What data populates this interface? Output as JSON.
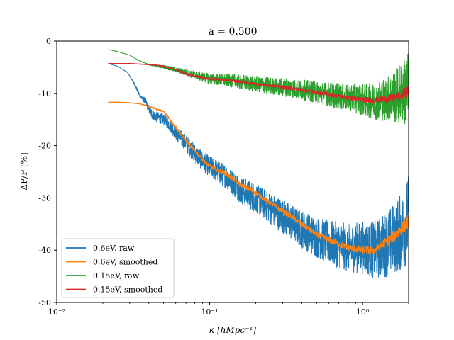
{
  "chart_data": {
    "type": "line",
    "title": "a = 0.500",
    "xlabel": "k [hMpc⁻¹]",
    "ylabel": "ΔP/P [%]",
    "xscale": "log",
    "xlim": [
      0.01,
      2.0
    ],
    "ylim": [
      -50,
      0
    ],
    "grid": false,
    "legend_position": "lower-left",
    "x_ticks": [
      {
        "value": 0.01,
        "label": "10⁻²"
      },
      {
        "value": 0.1,
        "label": "10⁻¹"
      },
      {
        "value": 1,
        "label": "10⁰"
      }
    ],
    "y_ticks": [
      {
        "value": 0,
        "label": "0"
      },
      {
        "value": -10,
        "label": "-10"
      },
      {
        "value": -20,
        "label": "-20"
      },
      {
        "value": -30,
        "label": "-30"
      },
      {
        "value": -40,
        "label": "-40"
      },
      {
        "value": -50,
        "label": "-50"
      }
    ],
    "series": [
      {
        "name": "0.6eV, raw",
        "color": "#1f77b4",
        "noisy": true,
        "x": [
          0.0217,
          0.025,
          0.029,
          0.032,
          0.035,
          0.038,
          0.04,
          0.042,
          0.045,
          0.05,
          0.055,
          0.06,
          0.07,
          0.08,
          0.1,
          0.13,
          0.16,
          0.2,
          0.25,
          0.3,
          0.4,
          0.5,
          0.6,
          0.8,
          1.0,
          1.2,
          1.5,
          1.8,
          2.0
        ],
        "y": [
          -4.3,
          -4.8,
          -6.0,
          -8.0,
          -10.5,
          -11.5,
          -13.0,
          -14.0,
          -14.5,
          -15.0,
          -16.0,
          -17.5,
          -19.5,
          -21.5,
          -24.0,
          -26.0,
          -28.5,
          -30.0,
          -32.0,
          -33.5,
          -36.0,
          -37.5,
          -38.5,
          -39.5,
          -39.5,
          -40.0,
          -38.5,
          -36.5,
          -34.0
        ],
        "noise": [
          0.0,
          0.0,
          0.0,
          0.2,
          0.4,
          0.6,
          0.8,
          1.0,
          1.0,
          1.0,
          1.2,
          1.4,
          1.6,
          1.8,
          2.0,
          2.3,
          2.6,
          2.8,
          3.0,
          3.3,
          3.6,
          3.9,
          4.2,
          4.6,
          5.0,
          5.5,
          6.5,
          7.5,
          8.5
        ]
      },
      {
        "name": "0.6eV, smoothed",
        "color": "#ff7f0e",
        "noisy": false,
        "x": [
          0.0217,
          0.025,
          0.03,
          0.035,
          0.04,
          0.045,
          0.05,
          0.055,
          0.06,
          0.07,
          0.08,
          0.1,
          0.13,
          0.16,
          0.2,
          0.25,
          0.3,
          0.4,
          0.5,
          0.6,
          0.8,
          1.0,
          1.2,
          1.5,
          1.8,
          2.0
        ],
        "y": [
          -11.7,
          -11.7,
          -11.8,
          -12.0,
          -12.5,
          -13.0,
          -13.5,
          -15.0,
          -16.5,
          -19.0,
          -21.0,
          -24.0,
          -25.5,
          -27.5,
          -29.0,
          -31.0,
          -32.5,
          -35.0,
          -37.0,
          -38.0,
          -39.5,
          -40.0,
          -40.0,
          -38.0,
          -36.0,
          -34.5
        ],
        "noise": [
          0,
          0,
          0,
          0,
          0.1,
          0.1,
          0.2,
          0.2,
          0.3,
          0.3,
          0.3,
          0.4,
          0.4,
          0.4,
          0.4,
          0.4,
          0.5,
          0.5,
          0.5,
          0.6,
          0.6,
          0.7,
          0.8,
          1.0,
          1.2,
          1.5
        ]
      },
      {
        "name": "0.15eV, raw",
        "color": "#2ca02c",
        "noisy": true,
        "x": [
          0.0217,
          0.025,
          0.03,
          0.035,
          0.04,
          0.045,
          0.05,
          0.06,
          0.07,
          0.08,
          0.1,
          0.13,
          0.16,
          0.2,
          0.3,
          0.4,
          0.5,
          0.6,
          0.8,
          1.0,
          1.2,
          1.5,
          1.8,
          2.0
        ],
        "y": [
          -1.6,
          -2.0,
          -2.7,
          -3.8,
          -4.5,
          -4.8,
          -4.9,
          -5.5,
          -6.0,
          -6.5,
          -7.2,
          -7.5,
          -7.8,
          -8.2,
          -8.8,
          -9.3,
          -9.8,
          -10.2,
          -10.8,
          -11.2,
          -11.5,
          -11.0,
          -10.0,
          -9.0
        ],
        "noise": [
          0.0,
          0.0,
          0.0,
          0.0,
          0.1,
          0.2,
          0.3,
          0.5,
          0.6,
          0.8,
          1.0,
          1.2,
          1.4,
          1.5,
          1.7,
          1.9,
          2.1,
          2.3,
          2.6,
          3.0,
          3.5,
          4.5,
          6.0,
          7.5
        ]
      },
      {
        "name": "0.15eV, smoothed",
        "color": "#d62728",
        "noisy": false,
        "x": [
          0.0217,
          0.025,
          0.03,
          0.035,
          0.04,
          0.045,
          0.05,
          0.06,
          0.07,
          0.08,
          0.1,
          0.13,
          0.16,
          0.2,
          0.3,
          0.4,
          0.5,
          0.6,
          0.8,
          1.0,
          1.2,
          1.5,
          1.8,
          2.0
        ],
        "y": [
          -4.3,
          -4.3,
          -4.3,
          -4.4,
          -4.5,
          -4.6,
          -4.8,
          -5.5,
          -6.2,
          -6.7,
          -7.2,
          -7.5,
          -7.8,
          -8.2,
          -8.8,
          -9.3,
          -9.8,
          -10.2,
          -10.8,
          -11.2,
          -11.3,
          -11.0,
          -10.5,
          -9.5
        ],
        "noise": [
          0,
          0,
          0,
          0,
          0,
          0,
          0.1,
          0.1,
          0.2,
          0.2,
          0.2,
          0.2,
          0.2,
          0.2,
          0.3,
          0.3,
          0.3,
          0.4,
          0.4,
          0.5,
          0.6,
          0.7,
          0.9,
          1.2
        ]
      }
    ]
  }
}
